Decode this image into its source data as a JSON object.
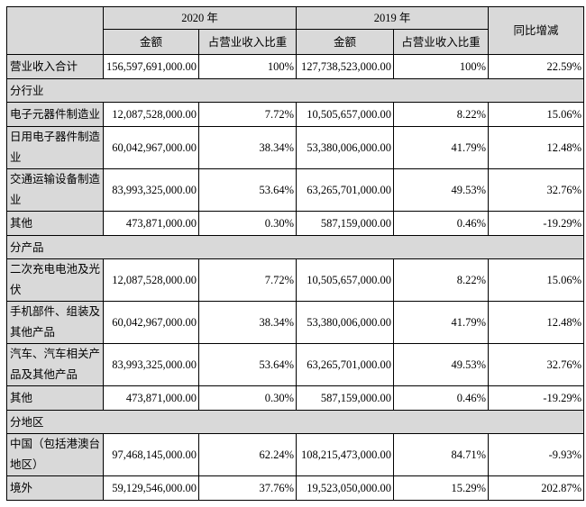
{
  "header": {
    "year_2020": "2020 年",
    "year_2019": "2019 年",
    "yoy": "同比增减",
    "amount": "金额",
    "share": "占营业收入比重"
  },
  "rows": [
    {
      "type": "data",
      "label": "营业收入合计",
      "a20": "156,597,691,000.00",
      "s20": "100%",
      "a19": "127,738,523,000.00",
      "s19": "100%",
      "yoy": "22.59%",
      "total": true
    },
    {
      "type": "section",
      "label": "分行业"
    },
    {
      "type": "data",
      "label": "电子元器件制造业",
      "a20": "12,087,528,000.00",
      "s20": "7.72%",
      "a19": "10,505,657,000.00",
      "s19": "8.22%",
      "yoy": "15.06%"
    },
    {
      "type": "data",
      "label": "日用电子器件制造业",
      "a20": "60,042,967,000.00",
      "s20": "38.34%",
      "a19": "53,380,006,000.00",
      "s19": "41.79%",
      "yoy": "12.48%",
      "tall": true
    },
    {
      "type": "data",
      "label": "交通运输设备制造业",
      "a20": "83,993,325,000.00",
      "s20": "53.64%",
      "a19": "63,265,701,000.00",
      "s19": "49.53%",
      "yoy": "32.76%",
      "tall": true
    },
    {
      "type": "data",
      "label": "其他",
      "a20": "473,871,000.00",
      "s20": "0.30%",
      "a19": "587,159,000.00",
      "s19": "0.46%",
      "yoy": "-19.29%"
    },
    {
      "type": "section",
      "label": "分产品"
    },
    {
      "type": "data",
      "label": "二次充电电池及光伏",
      "a20": "12,087,528,000.00",
      "s20": "7.72%",
      "a19": "10,505,657,000.00",
      "s19": "8.22%",
      "yoy": "15.06%",
      "tall": true
    },
    {
      "type": "data",
      "label": "手机部件、组装及其他产品",
      "a20": "60,042,967,000.00",
      "s20": "38.34%",
      "a19": "53,380,006,000.00",
      "s19": "41.79%",
      "yoy": "12.48%",
      "tall": true
    },
    {
      "type": "data",
      "label": "汽车、汽车相关产品及其他产品",
      "a20": "83,993,325,000.00",
      "s20": "53.64%",
      "a19": "63,265,701,000.00",
      "s19": "49.53%",
      "yoy": "32.76%",
      "tall": true
    },
    {
      "type": "data",
      "label": "其他",
      "a20": "473,871,000.00",
      "s20": "0.30%",
      "a19": "587,159,000.00",
      "s19": "0.46%",
      "yoy": "-19.29%"
    },
    {
      "type": "section",
      "label": "分地区"
    },
    {
      "type": "data",
      "label": "中国（包括港澳台地区）",
      "a20": "97,468,145,000.00",
      "s20": "62.24%",
      "a19": "108,215,473,000.00",
      "s19": "84.71%",
      "yoy": "-9.93%",
      "tall": true
    },
    {
      "type": "data",
      "label": "境外",
      "a20": "59,129,546,000.00",
      "s20": "37.76%",
      "a19": "19,523,050,000.00",
      "s19": "15.29%",
      "yoy": "202.87%"
    }
  ],
  "colors": {
    "header_bg": "#d9d9d9",
    "border": "#000000"
  }
}
